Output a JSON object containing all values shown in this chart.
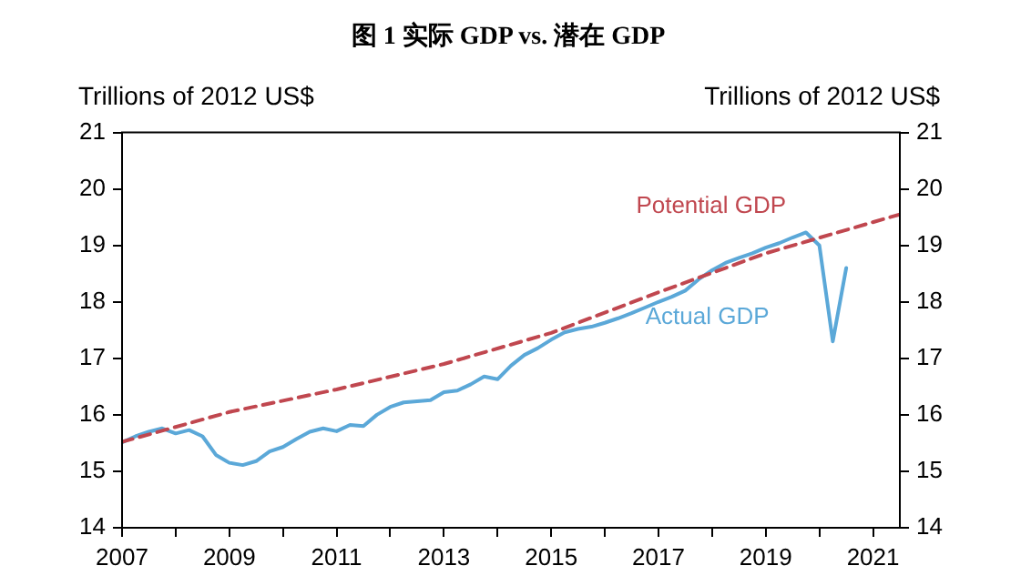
{
  "chart_data": {
    "type": "line",
    "title": "图 1 实际 GDP vs. 潜在 GDP",
    "ylabel": "Trillions of 2012 US$",
    "y2label": "Trillions of 2012 US$",
    "xlim": [
      2007,
      2021.5
    ],
    "xticks": [
      2007,
      {
        "value": 2008,
        "label": null
      },
      2009,
      {
        "value": 2010,
        "label": null
      },
      2011,
      {
        "value": 2012,
        "label": null
      },
      2013,
      {
        "value": 2014,
        "label": null
      },
      2015,
      {
        "value": 2016,
        "label": null
      },
      2017,
      {
        "value": 2018,
        "label": null
      },
      2019,
      {
        "value": 2020,
        "label": null
      },
      2021
    ],
    "ylim": [
      14,
      21
    ],
    "yticks": [
      14,
      15,
      16,
      17,
      18,
      19,
      20,
      21
    ],
    "y2lim": [
      14,
      21
    ],
    "y2ticks": [
      14,
      15,
      16,
      17,
      18,
      19,
      20,
      21
    ],
    "grid": false,
    "legend": false,
    "marker": "none",
    "series": [
      {
        "name": "Potential GDP",
        "color": "#c0474f",
        "line_style": "dashed",
        "x": [
          2007,
          2009,
          2011,
          2013,
          2015,
          2017,
          2019,
          2021.5
        ],
        "values": [
          15.52,
          16.05,
          16.45,
          16.9,
          17.45,
          18.17,
          18.86,
          19.55
        ]
      },
      {
        "name": "Actual GDP",
        "color": "#5ba8d8",
        "line_style": "solid",
        "x": [
          2007,
          2007.25,
          2007.5,
          2007.75,
          2008,
          2008.25,
          2008.5,
          2008.75,
          2009,
          2009.25,
          2009.5,
          2009.75,
          2010,
          2010.25,
          2010.5,
          2010.75,
          2011,
          2011.25,
          2011.5,
          2011.75,
          2012,
          2012.25,
          2012.5,
          2012.75,
          2013,
          2013.25,
          2013.5,
          2013.75,
          2014,
          2014.25,
          2014.5,
          2014.75,
          2015,
          2015.25,
          2015.5,
          2015.75,
          2016,
          2016.25,
          2016.5,
          2016.75,
          2017,
          2017.25,
          2017.5,
          2017.75,
          2018,
          2018.25,
          2018.5,
          2018.75,
          2019,
          2019.25,
          2019.5,
          2019.75,
          2020,
          2020.25,
          2020.5
        ],
        "values": [
          15.51,
          15.62,
          15.7,
          15.76,
          15.67,
          15.73,
          15.62,
          15.29,
          15.15,
          15.11,
          15.18,
          15.35,
          15.43,
          15.57,
          15.7,
          15.76,
          15.71,
          15.82,
          15.8,
          16.0,
          16.14,
          16.22,
          16.24,
          16.26,
          16.4,
          16.43,
          16.54,
          16.68,
          16.63,
          16.87,
          17.06,
          17.18,
          17.33,
          17.46,
          17.52,
          17.56,
          17.63,
          17.71,
          17.8,
          17.9,
          18.0,
          18.09,
          18.2,
          18.4,
          18.56,
          18.69,
          18.78,
          18.86,
          18.96,
          19.04,
          19.14,
          19.23,
          19.0,
          17.3,
          18.6
        ]
      }
    ]
  }
}
